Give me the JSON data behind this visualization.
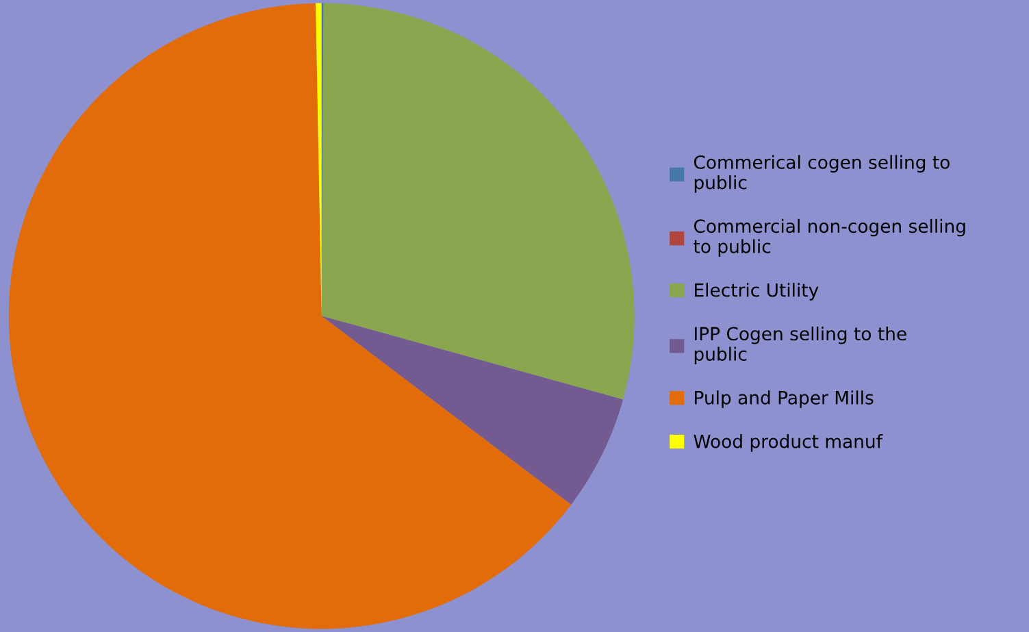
{
  "chart_data": {
    "type": "pie",
    "categories": [
      "Commerical cogen selling to public",
      "Commercial non-cogen selling to public",
      "Electric Utility",
      "IPP Cogen selling to the public",
      "Pulp and Paper Mills",
      "Wood product manuf"
    ],
    "values": [
      0.1,
      0,
      29.2,
      6.0,
      64.4,
      0.3
    ],
    "colors": [
      "#4677a8",
      "#b0443f",
      "#8aa64f",
      "#735a90",
      "#e36c0a",
      "#ffff00"
    ],
    "legend": "right"
  }
}
